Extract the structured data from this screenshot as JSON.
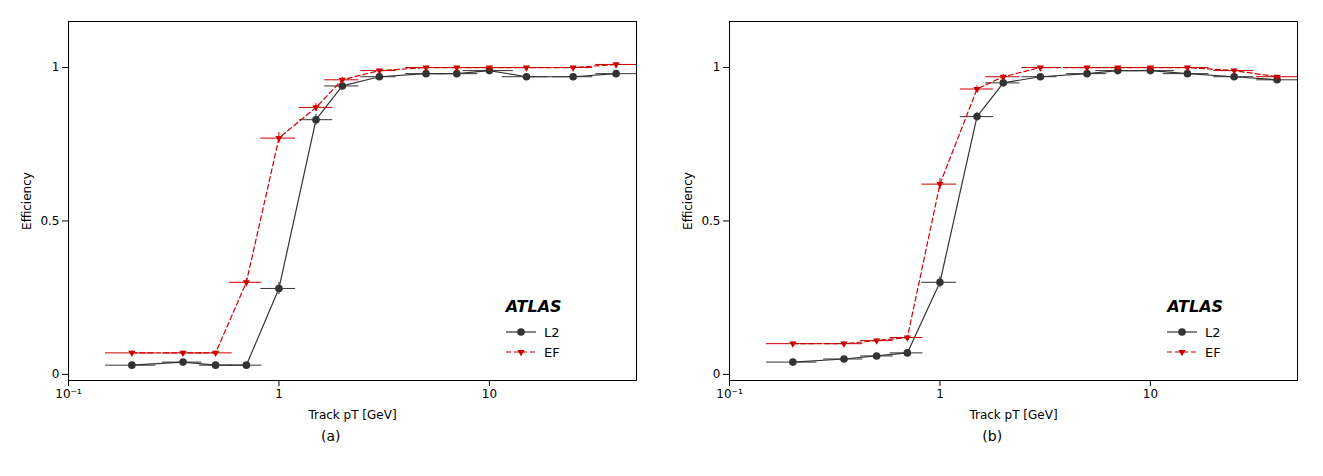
{
  "chart_data": [
    {
      "type": "line",
      "title": "(a)",
      "x_label": "Track pT [GeV]",
      "y_label": "Efficiency",
      "log": "x",
      "grid": false,
      "legend": "lower right",
      "xlim": [
        0.1,
        50
      ],
      "ylim": [
        -0.02,
        1.15
      ],
      "xticks": [
        {
          "value": 0.1,
          "label": "10⁻¹"
        },
        1,
        10
      ],
      "yticks": [
        0,
        0.5,
        1
      ],
      "annotations": [
        {
          "text": "ATLAS"
        }
      ],
      "x": [
        0.2,
        0.35,
        0.5,
        0.7,
        1.0,
        1.5,
        2.0,
        3.0,
        5.0,
        7.0,
        10.0,
        15.0,
        25.0,
        40.0
      ],
      "series": [
        {
          "name": "L2",
          "color": "#333333",
          "marker": "circle",
          "line_style": "solid",
          "values": [
            0.03,
            0.04,
            0.03,
            0.03,
            0.28,
            0.83,
            0.94,
            0.97,
            0.98,
            0.98,
            0.99,
            0.97,
            0.97,
            0.98
          ],
          "xerr_lo": [
            0.05,
            0.07,
            0.08,
            0.12,
            0.18,
            0.25,
            0.35,
            0.55,
            1.0,
            1.5,
            2.5,
            3.5,
            5.0,
            8.0
          ],
          "xerr_hi": [
            0.06,
            0.08,
            0.1,
            0.13,
            0.2,
            0.3,
            0.4,
            0.6,
            1.2,
            1.8,
            3.0,
            4.0,
            6.0,
            10.0
          ],
          "yerr": [
            0.005,
            0.005,
            0.005,
            0.005,
            0.02,
            0.018,
            0.012,
            0.008,
            0.005,
            0.005,
            0.004,
            0.006,
            0.006,
            0.01
          ]
        },
        {
          "name": "EF",
          "color": "#cc0000",
          "marker": "triangle_down",
          "line_style": "dashed",
          "values": [
            0.07,
            0.07,
            0.07,
            0.3,
            0.77,
            0.87,
            0.96,
            0.99,
            1.0,
            1.0,
            1.0,
            1.0,
            1.0,
            1.01
          ],
          "xerr_lo": [
            0.05,
            0.07,
            0.08,
            0.12,
            0.18,
            0.25,
            0.35,
            0.55,
            1.0,
            1.5,
            2.5,
            3.5,
            5.0,
            8.0
          ],
          "xerr_hi": [
            0.06,
            0.08,
            0.1,
            0.13,
            0.2,
            0.3,
            0.4,
            0.6,
            1.2,
            1.8,
            3.0,
            4.0,
            6.0,
            10.0
          ],
          "yerr": [
            0.006,
            0.006,
            0.006,
            0.012,
            0.018,
            0.012,
            0.008,
            0.005,
            0.003,
            0.003,
            0.002,
            0.002,
            0.002,
            0.003
          ]
        }
      ]
    },
    {
      "type": "line",
      "title": "(b)",
      "x_label": "Track pT [GeV]",
      "y_label": "Efficiency",
      "log": "x",
      "grid": false,
      "legend": "lower right",
      "xlim": [
        0.1,
        50
      ],
      "ylim": [
        -0.02,
        1.15
      ],
      "xticks": [
        {
          "value": 0.1,
          "label": "10⁻¹"
        },
        1,
        10
      ],
      "yticks": [
        0,
        0.5,
        1
      ],
      "annotations": [
        {
          "text": "ATLAS"
        }
      ],
      "x": [
        0.2,
        0.35,
        0.5,
        0.7,
        1.0,
        1.5,
        2.0,
        3.0,
        5.0,
        7.0,
        10.0,
        15.0,
        25.0,
        40.0
      ],
      "series": [
        {
          "name": "L2",
          "color": "#333333",
          "marker": "circle",
          "line_style": "solid",
          "values": [
            0.04,
            0.05,
            0.06,
            0.07,
            0.3,
            0.84,
            0.95,
            0.97,
            0.98,
            0.99,
            0.99,
            0.98,
            0.97,
            0.96
          ],
          "xerr_lo": [
            0.05,
            0.07,
            0.08,
            0.12,
            0.18,
            0.25,
            0.35,
            0.55,
            1.0,
            1.5,
            2.5,
            3.5,
            5.0,
            8.0
          ],
          "xerr_hi": [
            0.06,
            0.08,
            0.1,
            0.13,
            0.2,
            0.3,
            0.4,
            0.6,
            1.2,
            1.8,
            3.0,
            4.0,
            6.0,
            10.0
          ],
          "yerr": [
            0.005,
            0.005,
            0.005,
            0.006,
            0.018,
            0.014,
            0.01,
            0.007,
            0.005,
            0.004,
            0.004,
            0.005,
            0.006,
            0.01
          ]
        },
        {
          "name": "EF",
          "color": "#cc0000",
          "marker": "triangle_down",
          "line_style": "dashed",
          "values": [
            0.1,
            0.1,
            0.11,
            0.12,
            0.62,
            0.93,
            0.97,
            1.0,
            1.0,
            1.0,
            1.0,
            1.0,
            0.99,
            0.97
          ],
          "xerr_lo": [
            0.05,
            0.07,
            0.08,
            0.12,
            0.18,
            0.25,
            0.35,
            0.55,
            1.0,
            1.5,
            2.5,
            3.5,
            5.0,
            8.0
          ],
          "xerr_hi": [
            0.06,
            0.08,
            0.1,
            0.13,
            0.2,
            0.3,
            0.4,
            0.6,
            1.2,
            1.8,
            3.0,
            4.0,
            6.0,
            10.0
          ],
          "yerr": [
            0.006,
            0.006,
            0.006,
            0.007,
            0.018,
            0.01,
            0.007,
            0.004,
            0.003,
            0.003,
            0.002,
            0.002,
            0.003,
            0.005
          ]
        }
      ]
    }
  ]
}
